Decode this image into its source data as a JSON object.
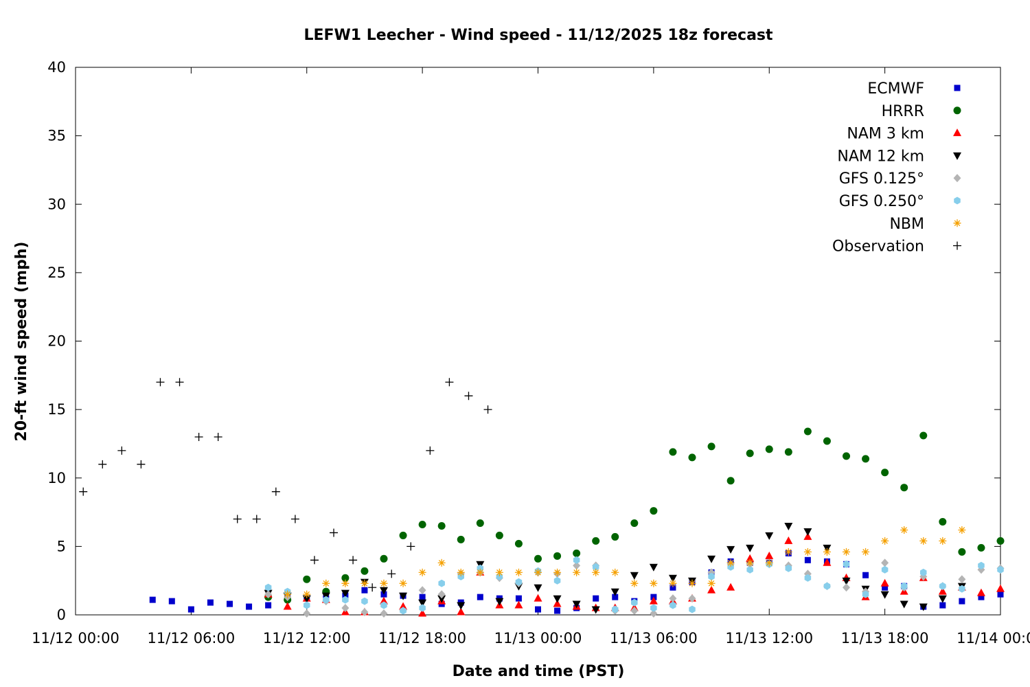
{
  "chart_data": {
    "type": "scatter",
    "title": "LEFW1 Leecher - Wind speed - 11/12/2025 18z forecast",
    "xlabel": "Date and time (PST)",
    "ylabel": "20-ft wind speed (mph)",
    "xlim": [
      0,
      48
    ],
    "ylim": [
      0,
      40
    ],
    "x_unit": "hours since 11/12 00:00 PST",
    "xticks": [
      {
        "value": 0,
        "label": "11/12 00:00"
      },
      {
        "value": 6,
        "label": "11/12 06:00"
      },
      {
        "value": 12,
        "label": "11/12 12:00"
      },
      {
        "value": 18,
        "label": "11/12 18:00"
      },
      {
        "value": 24,
        "label": "11/13 00:00"
      },
      {
        "value": 30,
        "label": "11/13 06:00"
      },
      {
        "value": 36,
        "label": "11/13 12:00"
      },
      {
        "value": 42,
        "label": "11/13 18:00"
      },
      {
        "value": 48,
        "label": "11/14 00:00"
      }
    ],
    "yticks": [
      0,
      5,
      10,
      15,
      20,
      25,
      30,
      35,
      40
    ],
    "grid": false,
    "legend_position": "top-right",
    "series": [
      {
        "name": "ECMWF",
        "marker": "square",
        "color": "#0000cc",
        "x": [
          4,
          5,
          6,
          7,
          8,
          9,
          10,
          11,
          12,
          13,
          14,
          15,
          16,
          17,
          18,
          19,
          20,
          21,
          22,
          23,
          24,
          25,
          26,
          27,
          28,
          29,
          30,
          31,
          32,
          33,
          34,
          35,
          36,
          37,
          38,
          39,
          40,
          41,
          42,
          43,
          44,
          45,
          46,
          47,
          48
        ],
        "y": [
          1.1,
          1.0,
          0.4,
          0.9,
          0.8,
          0.6,
          0.7,
          1.2,
          1.2,
          1.2,
          1.4,
          1.8,
          1.5,
          1.4,
          1.3,
          0.8,
          0.9,
          1.3,
          1.2,
          1.2,
          0.4,
          0.3,
          0.5,
          1.2,
          1.3,
          1.0,
          1.3,
          2.0,
          2.4,
          3.1,
          3.9,
          3.8,
          3.8,
          4.5,
          4.0,
          3.9,
          3.7,
          2.9,
          2.0,
          2.1,
          0.6,
          0.7,
          1.0,
          1.3,
          1.5
        ]
      },
      {
        "name": "HRRR",
        "marker": "circle",
        "color": "#006400",
        "x": [
          10,
          11,
          12,
          13,
          14,
          15,
          16,
          17,
          18,
          19,
          20,
          21,
          22,
          23,
          24,
          25,
          26,
          27,
          28,
          29,
          30,
          31,
          32,
          33,
          34,
          35,
          36,
          37,
          38,
          39,
          40,
          41,
          42,
          43,
          44,
          45,
          46,
          47,
          48
        ],
        "y": [
          1.3,
          1.1,
          2.6,
          1.7,
          2.7,
          3.2,
          4.1,
          5.8,
          6.6,
          6.5,
          5.5,
          6.7,
          5.8,
          5.2,
          4.1,
          4.3,
          4.5,
          5.4,
          5.7,
          6.7,
          7.6,
          11.9,
          11.5,
          12.3,
          9.8,
          11.8,
          12.1,
          11.9,
          13.4,
          12.7,
          11.6,
          11.4,
          10.4,
          9.3,
          13.1,
          6.8,
          4.6,
          4.9,
          5.4
        ]
      },
      {
        "name": "NAM 3 km",
        "marker": "triangle-up",
        "color": "#ff0000",
        "x": [
          10,
          11,
          12,
          13,
          14,
          15,
          16,
          17,
          18,
          19,
          20,
          21,
          22,
          23,
          24,
          25,
          26,
          27,
          28,
          29,
          30,
          31,
          32,
          33,
          34,
          35,
          36,
          37,
          38,
          39,
          40,
          41,
          42,
          43,
          44,
          45,
          46,
          47,
          48
        ],
        "y": [
          1.5,
          0.6,
          1.2,
          1.1,
          0.2,
          0.2,
          1.0,
          0.6,
          0.1,
          1.0,
          0.2,
          3.1,
          0.7,
          0.7,
          1.2,
          0.8,
          0.6,
          0.5,
          0.5,
          0.5,
          1.0,
          1.0,
          1.2,
          1.8,
          2.0,
          4.1,
          4.3,
          5.4,
          5.7,
          3.8,
          2.7,
          1.3,
          2.3,
          1.7,
          2.7,
          1.7,
          2.0,
          1.6,
          1.9
        ]
      },
      {
        "name": "NAM 12 km",
        "marker": "triangle-down",
        "color": "#000000",
        "x": [
          10,
          11,
          12,
          13,
          14,
          15,
          16,
          17,
          18,
          19,
          20,
          21,
          22,
          23,
          24,
          25,
          26,
          27,
          28,
          29,
          30,
          31,
          32,
          33,
          34,
          35,
          36,
          37,
          38,
          39,
          40,
          41,
          42,
          43,
          44,
          45,
          46,
          47,
          48
        ],
        "y": [
          1.6,
          1.4,
          1.2,
          1.4,
          1.6,
          2.4,
          1.8,
          1.4,
          0.9,
          1.2,
          0.7,
          3.7,
          1.0,
          2.1,
          2.0,
          1.2,
          0.8,
          0.4,
          1.7,
          2.9,
          3.5,
          2.7,
          2.5,
          4.1,
          4.8,
          4.9,
          5.8,
          6.5,
          6.1,
          4.9,
          2.5,
          1.9,
          1.5,
          0.8,
          0.6,
          1.2,
          2.1,
          null,
          null
        ]
      },
      {
        "name": "GFS 0.125°",
        "marker": "diamond",
        "color": "#b4b4b4",
        "x": [
          10,
          11,
          12,
          13,
          14,
          15,
          16,
          17,
          18,
          19,
          20,
          21,
          22,
          23,
          24,
          25,
          26,
          27,
          28,
          29,
          30,
          31,
          32,
          33,
          34,
          35,
          36,
          37,
          38,
          39,
          40,
          41,
          42,
          43,
          44,
          45,
          46,
          47,
          48
        ],
        "y": [
          1.5,
          1.3,
          0.1,
          1.0,
          0.5,
          0.2,
          0.1,
          0.3,
          1.8,
          1.5,
          3.0,
          3.1,
          2.7,
          2.3,
          3.1,
          3.0,
          3.6,
          3.6,
          0.3,
          0.3,
          0.1,
          1.2,
          1.2,
          3.1,
          3.7,
          3.7,
          3.7,
          3.6,
          3.0,
          2.1,
          2.0,
          1.7,
          3.8,
          2.0,
          2.8,
          2.1,
          2.6,
          3.3,
          3.4
        ]
      },
      {
        "name": "GFS 0.250°",
        "marker": "hexagon",
        "color": "#87ceeb",
        "x": [
          10,
          11,
          12,
          13,
          14,
          15,
          16,
          17,
          18,
          19,
          20,
          21,
          22,
          23,
          24,
          25,
          26,
          27,
          28,
          29,
          30,
          31,
          32,
          33,
          34,
          35,
          36,
          37,
          38,
          39,
          40,
          41,
          42,
          43,
          44,
          45,
          46,
          47,
          48
        ],
        "y": [
          2.0,
          1.7,
          0.7,
          1.1,
          1.1,
          1.0,
          0.7,
          0.3,
          0.5,
          2.3,
          2.8,
          3.4,
          2.8,
          2.4,
          3.2,
          2.5,
          4.0,
          3.5,
          0.4,
          0.9,
          0.5,
          0.7,
          0.4,
          2.8,
          3.5,
          3.3,
          3.7,
          3.4,
          2.7,
          2.1,
          3.7,
          1.5,
          3.3,
          2.1,
          3.1,
          2.1,
          1.9,
          3.6,
          3.3
        ]
      },
      {
        "name": "NBM",
        "marker": "star",
        "color": "#f5a000",
        "x": [
          11,
          12,
          13,
          14,
          15,
          16,
          17,
          18,
          19,
          20,
          21,
          22,
          23,
          24,
          25,
          26,
          27,
          28,
          29,
          30,
          31,
          32,
          33,
          34,
          35,
          36,
          37,
          38,
          39,
          40,
          41,
          42,
          43,
          44,
          45,
          46
        ],
        "y": [
          1.5,
          1.5,
          2.3,
          2.3,
          2.3,
          2.3,
          2.3,
          3.1,
          3.8,
          3.1,
          3.1,
          3.1,
          3.1,
          3.1,
          3.1,
          3.1,
          3.1,
          3.1,
          2.3,
          2.3,
          2.3,
          2.3,
          2.3,
          3.8,
          3.8,
          3.8,
          4.6,
          4.6,
          4.6,
          4.6,
          4.6,
          5.4,
          6.2,
          5.4,
          5.4,
          6.2
        ]
      },
      {
        "name": "Observation",
        "marker": "plus",
        "color": "#000000",
        "x": [
          0.4,
          1.4,
          2.4,
          3.4,
          4.4,
          5.4,
          6.4,
          7.4,
          8.4,
          9.4,
          10.4,
          11.4,
          12.4,
          13.4,
          14.4,
          15.4,
          16.4,
          17.4,
          18.4,
          19.4,
          20.4,
          21.4
        ],
        "y": [
          9,
          11,
          12,
          11,
          17,
          17,
          13,
          13,
          7,
          7,
          9,
          7,
          4,
          6,
          4,
          2,
          3,
          5,
          12,
          17,
          16,
          15
        ]
      }
    ]
  }
}
